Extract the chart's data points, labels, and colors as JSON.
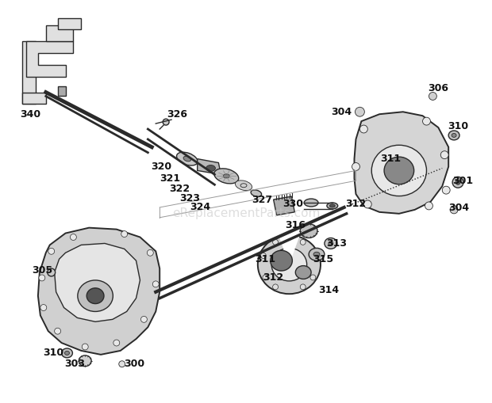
{
  "background_color": "#ffffff",
  "watermark": "eReplacementParts.com",
  "watermark_color": "#c8c8c8",
  "watermark_fontsize": 11,
  "line_color": "#2a2a2a",
  "label_color": "#111111",
  "label_fontsize": 9,
  "label_fontweight": "bold",
  "figsize": [
    6.2,
    5.09
  ],
  "dpi": 100
}
